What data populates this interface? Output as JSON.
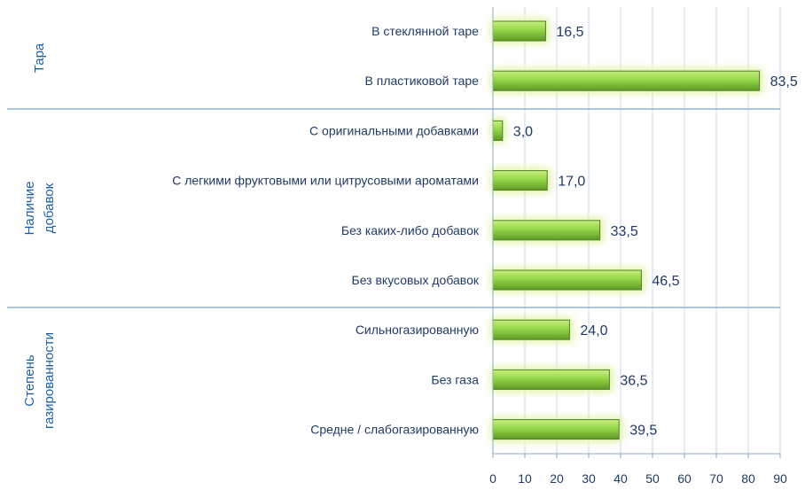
{
  "chart_data": {
    "type": "bar",
    "orientation": "horizontal",
    "title": "",
    "xlabel": "",
    "ylabel": "",
    "xlim": [
      0,
      90
    ],
    "x_ticks": [
      0,
      10,
      20,
      30,
      40,
      50,
      60,
      70,
      80,
      90
    ],
    "grid": "vertical",
    "colors": {
      "bar": "#8ed04a",
      "bar_edge": "#4f7d22",
      "glow": "#e4f5b0",
      "text": "#1f3a66",
      "group_text": "#1f5fa8",
      "group_line": "#8fb3d9",
      "grid": "#c6d8ec"
    },
    "groups": [
      {
        "name": "Тара",
        "name_lines": [
          "Тара"
        ],
        "items": [
          {
            "label": "В стеклянной таре",
            "value": 16.5,
            "value_label": "16,5"
          },
          {
            "label": "В пластиковой таре",
            "value": 83.5,
            "value_label": "83,5"
          }
        ]
      },
      {
        "name": "Наличие добавок",
        "name_lines": [
          "Наличие",
          "добавок"
        ],
        "items": [
          {
            "label": "С оригинальными добавками",
            "value": 3.0,
            "value_label": "3,0"
          },
          {
            "label": "С легкими фруктовыми или цитрусовыми ароматами",
            "value": 17.0,
            "value_label": "17,0"
          },
          {
            "label": "Без каких-либо добавок",
            "value": 33.5,
            "value_label": "33,5"
          },
          {
            "label": "Без вкусовых добавок",
            "value": 46.5,
            "value_label": "46,5"
          }
        ]
      },
      {
        "name": "Степень газированности",
        "name_lines": [
          "Степень",
          "газированности"
        ],
        "items": [
          {
            "label": "Сильногазированную",
            "value": 24.0,
            "value_label": "24,0"
          },
          {
            "label": "Без газа",
            "value": 36.5,
            "value_label": "36,5"
          },
          {
            "label": "Средне / слабогазированную",
            "value": 39.5,
            "value_label": "39,5"
          }
        ]
      }
    ]
  }
}
